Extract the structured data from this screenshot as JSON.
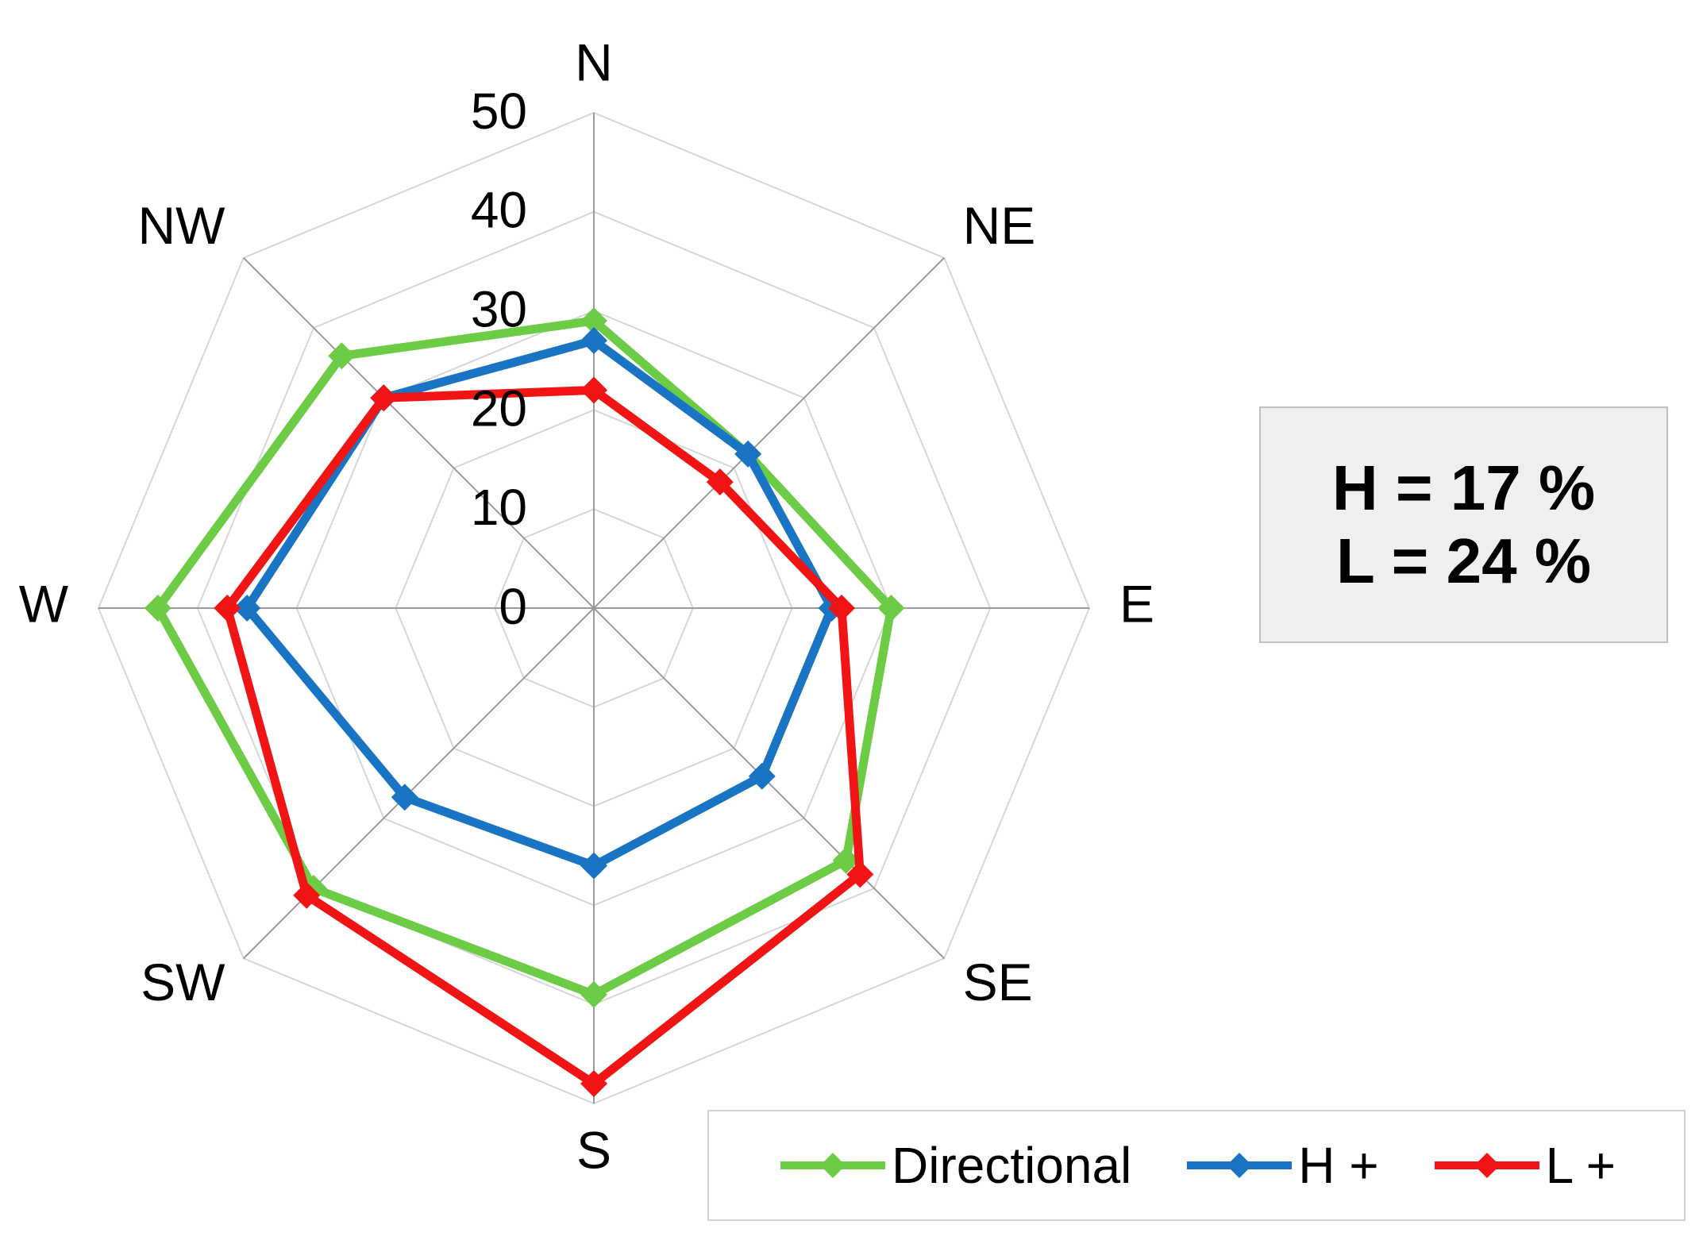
{
  "chart_data": {
    "type": "radar",
    "categories": [
      "N",
      "NE",
      "E",
      "SE",
      "S",
      "SW",
      "W",
      "NW"
    ],
    "radial_ticks": [
      "0",
      "10",
      "20",
      "30",
      "40",
      "50"
    ],
    "rlim": [
      0,
      50
    ],
    "grid": true,
    "legend_position": "bottom-right",
    "series": [
      {
        "name": "Directional",
        "color": "#6dcc45",
        "values": [
          29,
          22,
          30,
          36,
          39,
          40,
          44,
          36
        ]
      },
      {
        "name": "H +",
        "color": "#1a74c4",
        "values": [
          27,
          22,
          24,
          24,
          26,
          27,
          35,
          30
        ]
      },
      {
        "name": "L +",
        "color": "#f01414",
        "values": [
          22,
          18,
          25,
          38,
          48,
          41,
          37,
          30
        ]
      }
    ]
  },
  "annotation": {
    "line1": "H = 17 %",
    "line2": "L = 24 %"
  }
}
